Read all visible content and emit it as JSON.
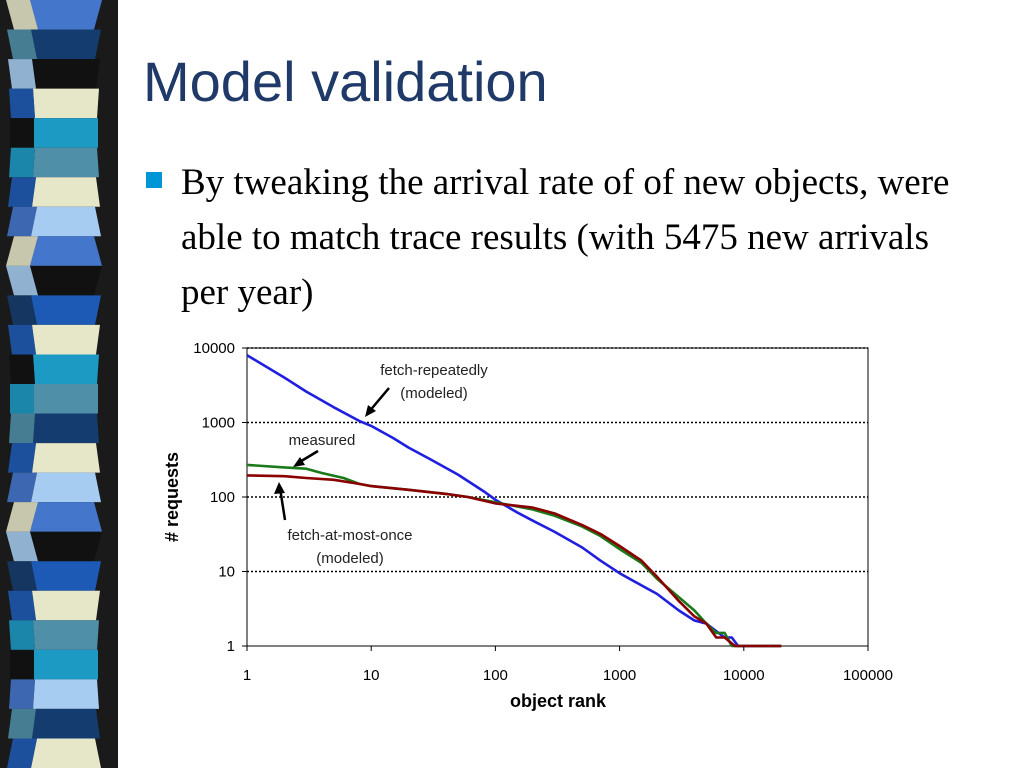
{
  "slide": {
    "title": "Model validation",
    "bullet_text": "By tweaking the arrival rate of of new objects, were able to match trace results (with 5475 new arrivals per year)",
    "colors": {
      "title": "#1f3a68",
      "bullet": "#0096d6",
      "text": "#000000"
    }
  },
  "decoration": {
    "strip_colors": [
      "#1c9ac4",
      "#4477cc",
      "#143c6e",
      "#111111",
      "#e6e6c8",
      "#4f8fa8",
      "#a7ccf2",
      "#1d5ab5"
    ]
  },
  "chart_data": {
    "type": "line",
    "xlabel": "object rank",
    "ylabel": "# requests",
    "xscale": "log",
    "yscale": "log",
    "xlim": [
      1,
      100000
    ],
    "ylim": [
      1,
      10000
    ],
    "xticks": [
      1,
      10,
      100,
      1000,
      10000,
      100000
    ],
    "xtick_labels": [
      "1",
      "10",
      "100",
      "1000",
      "10000",
      "100000"
    ],
    "yticks": [
      1,
      10,
      100,
      1000,
      10000
    ],
    "ytick_labels": [
      "1",
      "10",
      "100",
      "1000",
      "10000"
    ],
    "grid": "horizontal dashed",
    "series": [
      {
        "key": "fetch-repeatedly",
        "color": "#1f1fe0",
        "points": [
          [
            1,
            8000
          ],
          [
            2,
            4000
          ],
          [
            3,
            2600
          ],
          [
            5,
            1600
          ],
          [
            8,
            1050
          ],
          [
            10,
            900
          ],
          [
            15,
            620
          ],
          [
            20,
            460
          ],
          [
            30,
            320
          ],
          [
            50,
            200
          ],
          [
            80,
            120
          ],
          [
            100,
            92
          ],
          [
            150,
            62
          ],
          [
            200,
            48
          ],
          [
            300,
            34
          ],
          [
            500,
            21
          ],
          [
            700,
            14
          ],
          [
            1000,
            9.5
          ],
          [
            1500,
            6.5
          ],
          [
            2000,
            5
          ],
          [
            3000,
            3
          ],
          [
            4000,
            2.2
          ],
          [
            5000,
            2
          ],
          [
            7000,
            1.3
          ],
          [
            8000,
            1.3
          ],
          [
            9000,
            1
          ],
          [
            20000,
            1
          ]
        ]
      },
      {
        "key": "measured",
        "color": "#1a7a1a",
        "points": [
          [
            1,
            270
          ],
          [
            2,
            250
          ],
          [
            3,
            240
          ],
          [
            4,
            210
          ],
          [
            6,
            180
          ],
          [
            8,
            150
          ],
          [
            10,
            140
          ],
          [
            20,
            125
          ],
          [
            40,
            110
          ],
          [
            60,
            100
          ],
          [
            100,
            85
          ],
          [
            200,
            68
          ],
          [
            300,
            56
          ],
          [
            500,
            40
          ],
          [
            700,
            30
          ],
          [
            1000,
            20
          ],
          [
            1500,
            13
          ],
          [
            2000,
            8
          ],
          [
            3000,
            4.5
          ],
          [
            4000,
            3
          ],
          [
            5000,
            2
          ],
          [
            6000,
            1.5
          ],
          [
            7000,
            1.5
          ],
          [
            8000,
            1
          ],
          [
            20000,
            1
          ]
        ]
      },
      {
        "key": "fetch-at-most-once",
        "color": "#8b0000",
        "points": [
          [
            1,
            195
          ],
          [
            2,
            190
          ],
          [
            3,
            180
          ],
          [
            5,
            170
          ],
          [
            8,
            150
          ],
          [
            10,
            140
          ],
          [
            20,
            125
          ],
          [
            40,
            110
          ],
          [
            60,
            100
          ],
          [
            100,
            82
          ],
          [
            200,
            72
          ],
          [
            300,
            60
          ],
          [
            500,
            42
          ],
          [
            700,
            32
          ],
          [
            1000,
            22
          ],
          [
            1500,
            14
          ],
          [
            2000,
            8.5
          ],
          [
            3000,
            4
          ],
          [
            4000,
            2.5
          ],
          [
            5000,
            2
          ],
          [
            6000,
            1.3
          ],
          [
            7000,
            1.3
          ],
          [
            8500,
            1
          ],
          [
            20000,
            1
          ]
        ]
      }
    ],
    "annotations": [
      {
        "line1": "fetch-repeatedly",
        "line2": "(modeled)"
      },
      {
        "line1": "measured"
      },
      {
        "line1": "fetch-at-most-once",
        "line2": "(modeled)"
      }
    ]
  }
}
